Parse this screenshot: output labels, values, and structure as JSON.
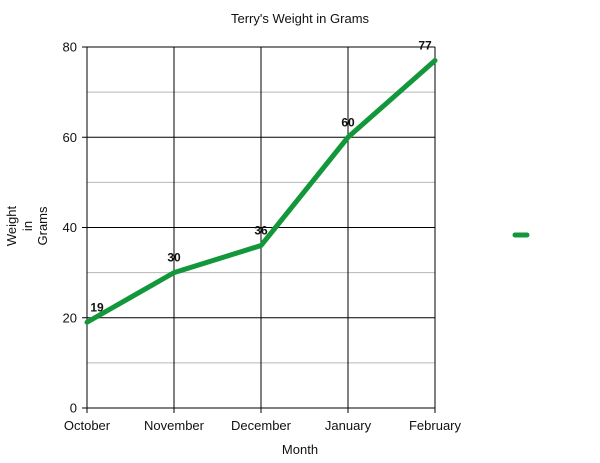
{
  "chart_data": {
    "type": "line",
    "title": "Terry's Weight in Grams",
    "xlabel": "Month",
    "ylabel": "Weight in Grams",
    "categories": [
      "October",
      "November",
      "December",
      "January",
      "February"
    ],
    "series": [
      {
        "values": [
          19,
          30,
          36,
          60,
          77
        ],
        "color": "#13973b"
      }
    ],
    "ylim": [
      0,
      80
    ],
    "major_y_ticks": [
      0,
      20,
      40,
      60,
      80
    ],
    "minor_y_ticks": [
      10,
      30,
      50,
      70
    ],
    "grid": true,
    "data_labels": true,
    "legend": {
      "position": "right",
      "color": "#13973b"
    }
  }
}
